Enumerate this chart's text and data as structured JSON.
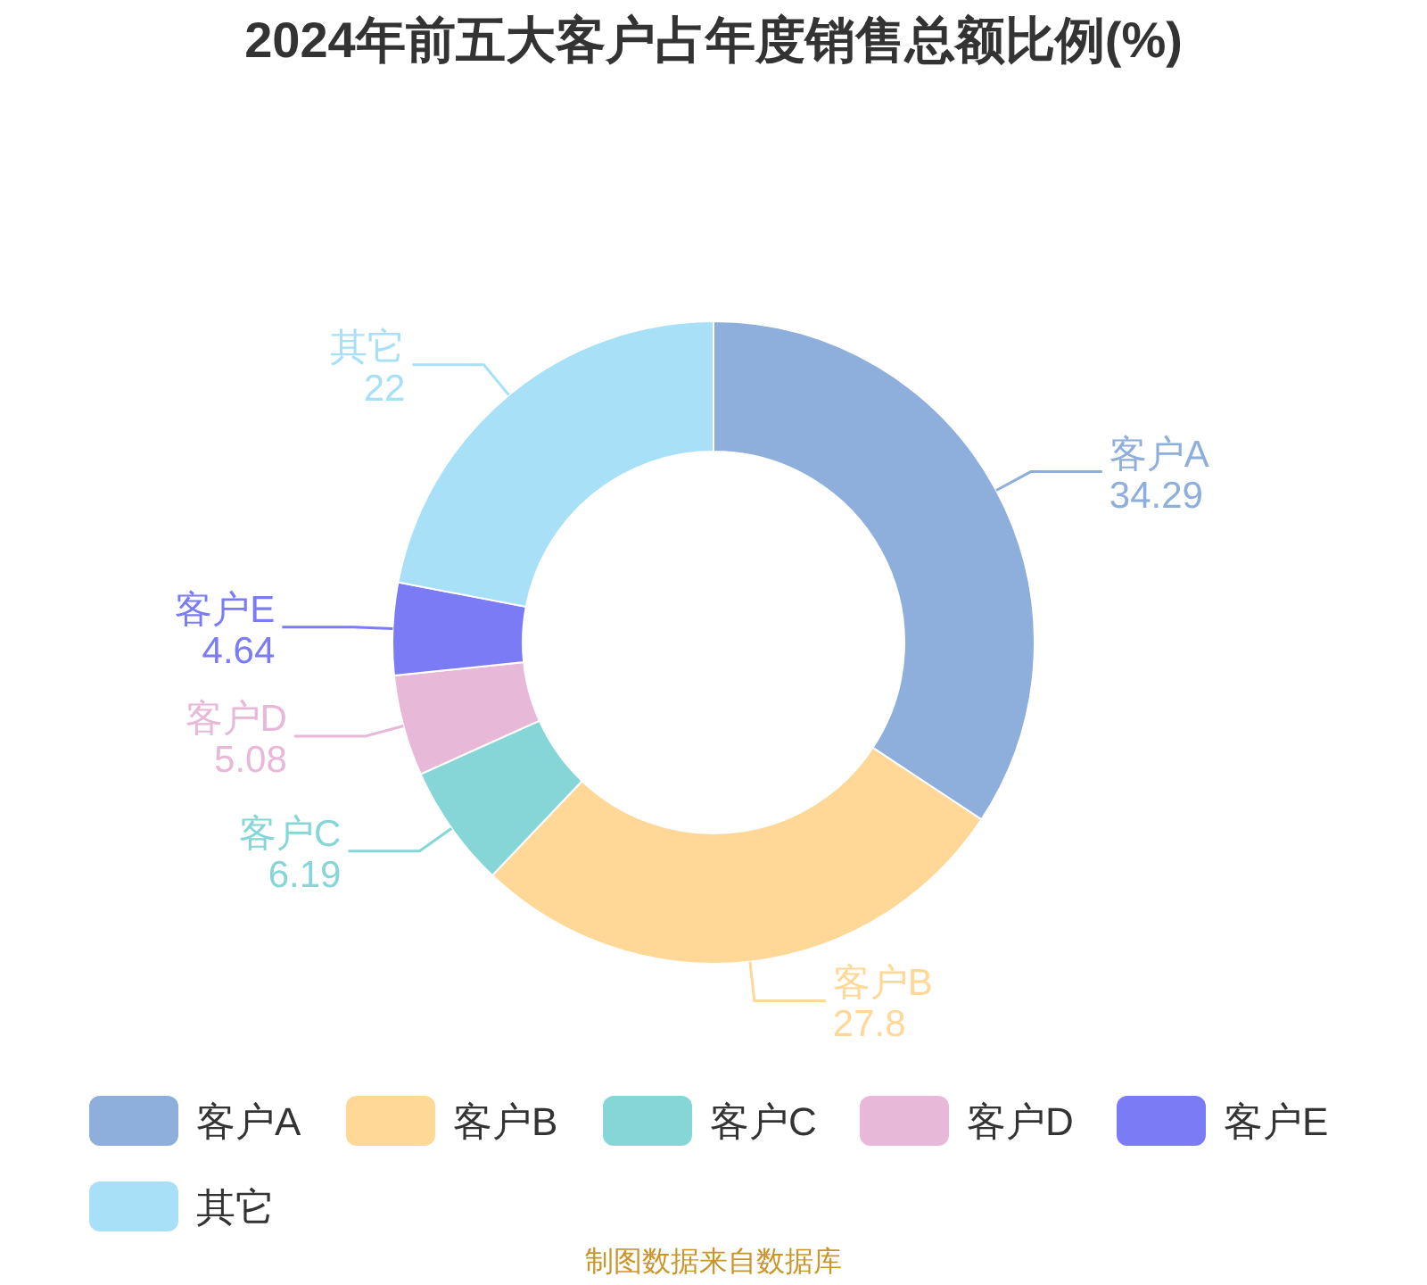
{
  "chart_data": {
    "type": "donut",
    "title": "2024年前五大客户占年度销售总额比例(%)",
    "categories": [
      "客户A",
      "客户B",
      "客户C",
      "客户D",
      "客户E",
      "其它"
    ],
    "values": [
      34.29,
      27.8,
      6.19,
      5.08,
      4.64,
      22
    ],
    "colors": [
      "#8eaedb",
      "#ffd898",
      "#86d6d8",
      "#e8b8d8",
      "#7b7cf5",
      "#a8e0f8"
    ],
    "data_labels": true,
    "legend": "bottom",
    "annotations": [
      "制图数据来自数据库"
    ]
  }
}
